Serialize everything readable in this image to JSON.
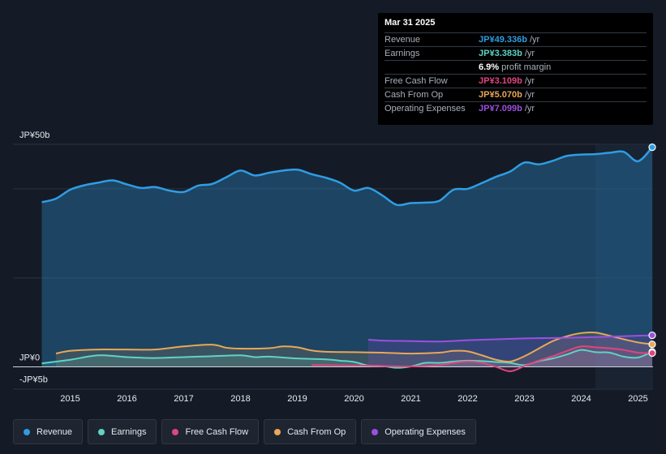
{
  "chart_data": {
    "type": "area",
    "y_unit_labels": {
      "top": "JP¥50b",
      "zero": "JP¥0",
      "bottom": "-JP¥5b"
    },
    "ylim": [
      -5,
      50
    ],
    "xlim": [
      2014.45,
      2025.25
    ],
    "x_ticks": [
      "2015",
      "2016",
      "2017",
      "2018",
      "2019",
      "2020",
      "2021",
      "2022",
      "2023",
      "2024",
      "2025"
    ],
    "x_tick_values": [
      2015,
      2016,
      2017,
      2018,
      2019,
      2020,
      2021,
      2022,
      2023,
      2024,
      2025
    ],
    "forecast_start": 2024.25,
    "series": [
      {
        "name": "Revenue",
        "key": "revenue",
        "color": "#2f9de4",
        "x": [
          2014.5,
          2014.75,
          2015.0,
          2015.25,
          2015.5,
          2015.75,
          2016.0,
          2016.25,
          2016.5,
          2016.75,
          2017.0,
          2017.25,
          2017.5,
          2017.75,
          2018.0,
          2018.25,
          2018.5,
          2018.75,
          2019.0,
          2019.25,
          2019.5,
          2019.75,
          2020.0,
          2020.25,
          2020.5,
          2020.75,
          2021.0,
          2021.25,
          2021.5,
          2021.75,
          2022.0,
          2022.25,
          2022.5,
          2022.75,
          2023.0,
          2023.25,
          2023.5,
          2023.75,
          2024.0,
          2024.25,
          2024.5,
          2024.75,
          2025.0,
          2025.25
        ],
        "values": [
          37.0,
          37.8,
          39.8,
          40.8,
          41.4,
          41.9,
          41.0,
          40.2,
          40.4,
          39.6,
          39.3,
          40.7,
          41.1,
          42.6,
          44.1,
          43.0,
          43.6,
          44.1,
          44.3,
          43.3,
          42.5,
          41.4,
          39.6,
          40.2,
          38.5,
          36.4,
          36.8,
          36.9,
          37.3,
          39.8,
          40.0,
          41.3,
          42.7,
          43.9,
          45.9,
          45.5,
          46.3,
          47.4,
          47.7,
          47.8,
          48.1,
          48.3,
          46.2,
          49.336
        ]
      },
      {
        "name": "Earnings",
        "key": "earnings",
        "color": "#5fd3c4",
        "x": [
          2014.5,
          2015.0,
          2015.5,
          2016.0,
          2016.5,
          2017.0,
          2017.5,
          2018.0,
          2018.25,
          2018.5,
          2019.0,
          2019.5,
          2019.75,
          2020.0,
          2020.25,
          2020.5,
          2020.75,
          2021.0,
          2021.25,
          2021.5,
          2021.75,
          2022.0,
          2022.25,
          2022.5,
          2022.75,
          2023.0,
          2023.25,
          2023.5,
          2023.75,
          2024.0,
          2024.25,
          2024.5,
          2024.75,
          2025.0,
          2025.25
        ],
        "values": [
          0.8,
          1.6,
          2.6,
          2.2,
          2.0,
          2.2,
          2.4,
          2.6,
          2.2,
          2.3,
          1.9,
          1.7,
          1.4,
          1.1,
          0.3,
          0.2,
          -0.2,
          0.1,
          0.9,
          0.9,
          1.2,
          1.4,
          1.3,
          1.1,
          0.9,
          0.4,
          1.3,
          1.9,
          2.8,
          3.8,
          3.3,
          3.2,
          2.3,
          2.1,
          3.383
        ]
      },
      {
        "name": "Free Cash Flow",
        "key": "fcf",
        "color": "#e0457f",
        "x": [
          2019.25,
          2019.5,
          2020.0,
          2020.5,
          2021.0,
          2021.5,
          2021.75,
          2022.0,
          2022.25,
          2022.5,
          2022.75,
          2023.0,
          2023.25,
          2023.5,
          2023.75,
          2024.0,
          2024.25,
          2024.5,
          2024.75,
          2025.0,
          2025.25
        ],
        "values": [
          0.4,
          0.4,
          0.3,
          0.2,
          0.1,
          0.4,
          0.9,
          1.2,
          0.9,
          0.0,
          -1.0,
          0.2,
          1.4,
          2.4,
          3.6,
          4.6,
          4.4,
          4.2,
          3.8,
          3.2,
          3.109
        ]
      },
      {
        "name": "Cash From Op",
        "key": "cfo",
        "color": "#e8a858",
        "x": [
          2014.75,
          2015.0,
          2015.5,
          2016.0,
          2016.5,
          2017.0,
          2017.5,
          2017.75,
          2018.0,
          2018.5,
          2018.75,
          2019.0,
          2019.25,
          2019.5,
          2020.0,
          2020.5,
          2021.0,
          2021.5,
          2021.75,
          2022.0,
          2022.25,
          2022.5,
          2022.75,
          2023.0,
          2023.25,
          2023.5,
          2023.75,
          2024.0,
          2024.25,
          2024.5,
          2024.75,
          2025.0,
          2025.25
        ],
        "values": [
          3.0,
          3.6,
          3.9,
          3.9,
          3.9,
          4.6,
          5.0,
          4.3,
          4.1,
          4.2,
          4.6,
          4.4,
          3.7,
          3.4,
          3.3,
          3.2,
          3.0,
          3.2,
          3.6,
          3.5,
          2.6,
          1.6,
          1.2,
          2.4,
          4.1,
          5.8,
          6.9,
          7.6,
          7.7,
          7.0,
          6.2,
          5.5,
          5.07
        ]
      },
      {
        "name": "Operating Expenses",
        "key": "opex",
        "color": "#9d4fe0",
        "x": [
          2020.25,
          2020.5,
          2021.0,
          2021.5,
          2022.0,
          2022.5,
          2023.0,
          2023.5,
          2024.0,
          2024.5,
          2025.0,
          2025.25
        ],
        "values": [
          6.1,
          5.9,
          5.8,
          5.7,
          6.0,
          6.2,
          6.4,
          6.5,
          6.6,
          6.8,
          7.0,
          7.099
        ]
      }
    ]
  },
  "tooltip": {
    "date": "Mar 31 2025",
    "rows": [
      {
        "label": "Revenue",
        "value": "JP¥49.336b",
        "unit": "/yr",
        "color": "#2f9de4"
      },
      {
        "label": "Earnings",
        "value": "JP¥3.383b",
        "unit": "/yr",
        "color": "#5fd3c4"
      },
      {
        "label": "",
        "value": "6.9%",
        "unit": "profit margin",
        "color": "#ffffff"
      },
      {
        "label": "Free Cash Flow",
        "value": "JP¥3.109b",
        "unit": "/yr",
        "color": "#e0457f"
      },
      {
        "label": "Cash From Op",
        "value": "JP¥5.070b",
        "unit": "/yr",
        "color": "#e8a858"
      },
      {
        "label": "Operating Expenses",
        "value": "JP¥7.099b",
        "unit": "/yr",
        "color": "#9d4fe0"
      }
    ]
  },
  "legend": [
    {
      "label": "Revenue",
      "color": "#2f9de4"
    },
    {
      "label": "Earnings",
      "color": "#5fd3c4"
    },
    {
      "label": "Free Cash Flow",
      "color": "#e0457f"
    },
    {
      "label": "Cash From Op",
      "color": "#e8a858"
    },
    {
      "label": "Operating Expenses",
      "color": "#9d4fe0"
    }
  ]
}
